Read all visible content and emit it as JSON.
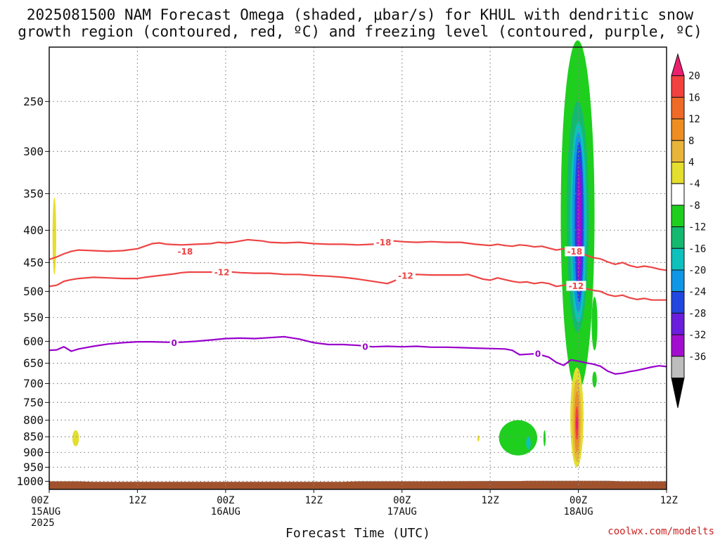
{
  "title_lines": [
    "2025081500 NAM Forecast Omega (shaded, μbar/s) for KHUL with dendritic snow",
    "growth region (contoured, red, ºC) and freezing level (contoured, purple, ºC)"
  ],
  "credit": "coolwx.com/modelts",
  "colors": {
    "grid": "#888888",
    "snow_contour": "#ee4444",
    "freezing_contour": "#9900cc",
    "terrain": "#a0522d",
    "credit": "#cc2222"
  },
  "chart_data": {
    "type": "heatmap",
    "xlabel": "Forecast Time (UTC)",
    "x_hours_range": [
      0,
      84
    ],
    "x_ticks": [
      {
        "hour": 0,
        "lines": [
          "00Z",
          "15AUG",
          "2025"
        ]
      },
      {
        "hour": 12,
        "lines": [
          "12Z"
        ]
      },
      {
        "hour": 24,
        "lines": [
          "00Z",
          "16AUG"
        ]
      },
      {
        "hour": 36,
        "lines": [
          "12Z"
        ]
      },
      {
        "hour": 48,
        "lines": [
          "00Z",
          "17AUG"
        ]
      },
      {
        "hour": 60,
        "lines": [
          "12Z"
        ]
      },
      {
        "hour": 72,
        "lines": [
          "00Z",
          "18AUG"
        ]
      },
      {
        "hour": 84,
        "lines": [
          "12Z"
        ]
      }
    ],
    "y_scale": "log pressure (hPa), inverted",
    "y_range": [
      1030,
      205
    ],
    "y_ticks": [
      250,
      300,
      350,
      400,
      450,
      500,
      550,
      600,
      650,
      700,
      750,
      800,
      850,
      900,
      950,
      1000
    ],
    "grid": "dotted",
    "colorbar": {
      "ticks": [
        "20",
        "16",
        "12",
        "8",
        "4",
        "-4",
        "-8",
        "-12",
        "-16",
        "-20",
        "-24",
        "-28",
        "-32",
        "-36"
      ],
      "colors": [
        "#ee1e6e",
        "#f2413f",
        "#f06a27",
        "#ee8e22",
        "#e8b53a",
        "#e4de2e",
        "#ffffff",
        "#1ecf1e",
        "#14b970",
        "#0ec1bd",
        "#1096e6",
        "#2246e0",
        "#6a1ddd",
        "#a30dd0",
        "#bdbdbd",
        "#000000"
      ]
    },
    "contours": [
      {
        "label": "-18",
        "color": "#ee4444",
        "label_positions": [
          {
            "x": 18.5,
            "p": 432
          },
          {
            "x": 45.5,
            "p": 418
          },
          {
            "x": 71.5,
            "p": 432
          }
        ],
        "points": [
          [
            0,
            445
          ],
          [
            1,
            441
          ],
          [
            2,
            436
          ],
          [
            3,
            432
          ],
          [
            4,
            430
          ],
          [
            6,
            431
          ],
          [
            8,
            432
          ],
          [
            10,
            431
          ],
          [
            12,
            428
          ],
          [
            13,
            424
          ],
          [
            14,
            420
          ],
          [
            15,
            419
          ],
          [
            16,
            421
          ],
          [
            18,
            422
          ],
          [
            20,
            421
          ],
          [
            22,
            420
          ],
          [
            23,
            418
          ],
          [
            24,
            419
          ],
          [
            25,
            418
          ],
          [
            26,
            416
          ],
          [
            27,
            414
          ],
          [
            28,
            415
          ],
          [
            29,
            416
          ],
          [
            30,
            418
          ],
          [
            32,
            419
          ],
          [
            34,
            418
          ],
          [
            36,
            420
          ],
          [
            38,
            421
          ],
          [
            40,
            421
          ],
          [
            42,
            422
          ],
          [
            44,
            421
          ],
          [
            45,
            418
          ],
          [
            46,
            417
          ],
          [
            47,
            416
          ],
          [
            48,
            417
          ],
          [
            50,
            418
          ],
          [
            52,
            417
          ],
          [
            54,
            418
          ],
          [
            56,
            418
          ],
          [
            58,
            421
          ],
          [
            60,
            423
          ],
          [
            61,
            421
          ],
          [
            62,
            423
          ],
          [
            63,
            424
          ],
          [
            64,
            422
          ],
          [
            65,
            423
          ],
          [
            66,
            425
          ],
          [
            67,
            424
          ],
          [
            68,
            427
          ],
          [
            69,
            430
          ],
          [
            70,
            428
          ],
          [
            71,
            430
          ],
          [
            72,
            432
          ],
          [
            73,
            438
          ],
          [
            74,
            442
          ],
          [
            75,
            444
          ],
          [
            76,
            449
          ],
          [
            77,
            453
          ],
          [
            78,
            450
          ],
          [
            79,
            455
          ],
          [
            80,
            458
          ],
          [
            81,
            456
          ],
          [
            82,
            458
          ],
          [
            83,
            461
          ],
          [
            84,
            463
          ]
        ]
      },
      {
        "label": "-12",
        "color": "#ee4444",
        "label_positions": [
          {
            "x": 23.5,
            "p": 466
          },
          {
            "x": 48.5,
            "p": 472
          },
          {
            "x": 71.7,
            "p": 490
          }
        ],
        "points": [
          [
            0,
            491
          ],
          [
            1,
            489
          ],
          [
            2,
            482
          ],
          [
            3,
            479
          ],
          [
            4,
            477
          ],
          [
            6,
            475
          ],
          [
            8,
            476
          ],
          [
            10,
            477
          ],
          [
            12,
            477
          ],
          [
            13,
            475
          ],
          [
            15,
            472
          ],
          [
            17,
            469
          ],
          [
            18,
            467
          ],
          [
            19,
            466
          ],
          [
            20,
            466
          ],
          [
            22,
            466
          ],
          [
            24,
            465
          ],
          [
            26,
            467
          ],
          [
            28,
            468
          ],
          [
            30,
            468
          ],
          [
            32,
            470
          ],
          [
            34,
            470
          ],
          [
            36,
            472
          ],
          [
            38,
            473
          ],
          [
            40,
            475
          ],
          [
            42,
            478
          ],
          [
            44,
            482
          ],
          [
            45,
            484
          ],
          [
            46,
            486
          ],
          [
            47,
            481
          ],
          [
            48,
            474
          ],
          [
            49,
            471
          ],
          [
            50,
            470
          ],
          [
            52,
            471
          ],
          [
            54,
            471
          ],
          [
            56,
            471
          ],
          [
            57,
            470
          ],
          [
            58,
            474
          ],
          [
            59,
            478
          ],
          [
            60,
            480
          ],
          [
            61,
            476
          ],
          [
            62,
            479
          ],
          [
            63,
            482
          ],
          [
            64,
            484
          ],
          [
            65,
            483
          ],
          [
            66,
            486
          ],
          [
            67,
            484
          ],
          [
            68,
            486
          ],
          [
            69,
            491
          ],
          [
            70,
            489
          ],
          [
            71,
            487
          ],
          [
            72,
            490
          ],
          [
            73,
            495
          ],
          [
            74,
            498
          ],
          [
            75,
            500
          ],
          [
            76,
            506
          ],
          [
            77,
            509
          ],
          [
            78,
            507
          ],
          [
            79,
            512
          ],
          [
            80,
            515
          ],
          [
            81,
            513
          ],
          [
            82,
            516
          ],
          [
            83,
            516
          ],
          [
            84,
            516
          ]
        ]
      },
      {
        "label": "0",
        "color": "#9900cc",
        "label_positions": [
          {
            "x": 17,
            "p": 603
          },
          {
            "x": 43,
            "p": 612
          },
          {
            "x": 66.5,
            "p": 628
          }
        ],
        "points": [
          [
            0,
            620
          ],
          [
            1,
            619
          ],
          [
            2,
            612
          ],
          [
            3,
            622
          ],
          [
            4,
            617
          ],
          [
            6,
            611
          ],
          [
            8,
            606
          ],
          [
            10,
            603
          ],
          [
            12,
            601
          ],
          [
            14,
            601
          ],
          [
            16,
            602
          ],
          [
            18,
            602
          ],
          [
            20,
            600
          ],
          [
            22,
            597
          ],
          [
            24,
            594
          ],
          [
            26,
            593
          ],
          [
            28,
            594
          ],
          [
            30,
            592
          ],
          [
            32,
            590
          ],
          [
            34,
            595
          ],
          [
            36,
            603
          ],
          [
            38,
            607
          ],
          [
            40,
            607
          ],
          [
            42,
            609
          ],
          [
            44,
            612
          ],
          [
            46,
            611
          ],
          [
            48,
            612
          ],
          [
            50,
            611
          ],
          [
            52,
            613
          ],
          [
            54,
            613
          ],
          [
            56,
            614
          ],
          [
            58,
            615
          ],
          [
            60,
            616
          ],
          [
            62,
            617
          ],
          [
            63,
            620
          ],
          [
            64,
            630
          ],
          [
            66,
            628
          ],
          [
            67,
            631
          ],
          [
            68,
            636
          ],
          [
            69,
            648
          ],
          [
            70,
            655
          ],
          [
            71,
            642
          ],
          [
            72,
            645
          ],
          [
            73,
            649
          ],
          [
            74,
            652
          ],
          [
            75,
            657
          ],
          [
            76,
            669
          ],
          [
            77,
            676
          ],
          [
            78,
            674
          ],
          [
            79,
            670
          ],
          [
            80,
            667
          ],
          [
            82,
            659
          ],
          [
            83,
            656
          ],
          [
            84,
            658
          ]
        ]
      }
    ],
    "shaded_regions": [
      {
        "level": 6,
        "color": "#e4de2e",
        "center": [
          0.7,
          410
        ],
        "halfwidth_h": 0.25,
        "p_range": [
          355,
          470
        ]
      },
      {
        "level": 6,
        "color": "#e4de2e",
        "center": [
          3.6,
          855
        ],
        "halfwidth_h": 0.45,
        "p_range": [
          830,
          880
        ]
      },
      {
        "level": 6,
        "color": "#e4de2e",
        "center": [
          58.4,
          855
        ],
        "halfwidth_h": 0.12,
        "p_range": [
          845,
          865
        ]
      },
      {
        "level": -6,
        "color": "#1ecf1e",
        "center": [
          63.8,
          850
        ],
        "halfwidth_h": 2.6,
        "p_range": [
          800,
          910
        ]
      },
      {
        "level": -12,
        "color": "#0ec1bd",
        "center": [
          65.2,
          870
        ],
        "halfwidth_h": 0.3,
        "p_range": [
          850,
          890
        ]
      },
      {
        "level": -6,
        "color": "#1ecf1e",
        "center": [
          67.4,
          860
        ],
        "halfwidth_h": 0.15,
        "p_range": [
          830,
          880
        ]
      },
      {
        "level": -6,
        "color": "#1ecf1e",
        "center": [
          71.9,
          400
        ],
        "halfwidth_h": 2.3,
        "p_range": [
          200,
          720
        ]
      },
      {
        "level": -12,
        "color": "#14b970",
        "center": [
          71.9,
          400
        ],
        "halfwidth_h": 1.5,
        "p_range": [
          250,
          580
        ]
      },
      {
        "level": -16,
        "color": "#0ec1bd",
        "center": [
          72.0,
          390
        ],
        "halfwidth_h": 1.1,
        "p_range": [
          270,
          560
        ]
      },
      {
        "level": -20,
        "color": "#1096e6",
        "center": [
          72.0,
          390
        ],
        "halfwidth_h": 0.85,
        "p_range": [
          280,
          540
        ]
      },
      {
        "level": -24,
        "color": "#2246e0",
        "center": [
          72.1,
          390
        ],
        "halfwidth_h": 0.6,
        "p_range": [
          290,
          520
        ]
      },
      {
        "level": -28,
        "color": "#6a1ddd",
        "center": [
          72.1,
          400
        ],
        "halfwidth_h": 0.4,
        "p_range": [
          310,
          500
        ]
      },
      {
        "level": -32,
        "color": "#a30dd0",
        "center": [
          72.1,
          400
        ],
        "halfwidth_h": 0.25,
        "p_range": [
          320,
          480
        ]
      },
      {
        "level": -6,
        "color": "#1ecf1e",
        "center": [
          74.2,
          560
        ],
        "halfwidth_h": 0.4,
        "p_range": [
          510,
          620
        ]
      },
      {
        "level": -6,
        "color": "#1ecf1e",
        "center": [
          74.2,
          690
        ],
        "halfwidth_h": 0.3,
        "p_range": [
          670,
          710
        ]
      },
      {
        "level": 6,
        "color": "#e4de2e",
        "center": [
          71.8,
          780
        ],
        "halfwidth_h": 0.9,
        "p_range": [
          660,
          950
        ]
      },
      {
        "level": 10,
        "color": "#e8b53a",
        "center": [
          71.8,
          790
        ],
        "halfwidth_h": 0.6,
        "p_range": [
          690,
          930
        ]
      },
      {
        "level": 14,
        "color": "#ee8e22",
        "center": [
          71.8,
          800
        ],
        "halfwidth_h": 0.35,
        "p_range": [
          720,
          900
        ]
      },
      {
        "level": 18,
        "color": "#f2413f",
        "center": [
          71.8,
          800
        ],
        "halfwidth_h": 0.2,
        "p_range": [
          760,
          860
        ]
      },
      {
        "level": 22,
        "color": "#ee1e6e",
        "center": [
          71.8,
          800
        ],
        "halfwidth_h": 0.08,
        "p_range": [
          790,
          830
        ]
      }
    ],
    "surface_pressure": [
      [
        0,
        1000
      ],
      [
        4,
        1000
      ],
      [
        6,
        1002
      ],
      [
        24,
        1002
      ],
      [
        40,
        1002
      ],
      [
        42,
        1000
      ],
      [
        50,
        1000
      ],
      [
        60,
        999
      ],
      [
        64,
        999
      ],
      [
        65,
        998
      ],
      [
        70,
        998
      ],
      [
        76,
        998
      ],
      [
        78,
        1000
      ],
      [
        84,
        1000
      ]
    ]
  }
}
